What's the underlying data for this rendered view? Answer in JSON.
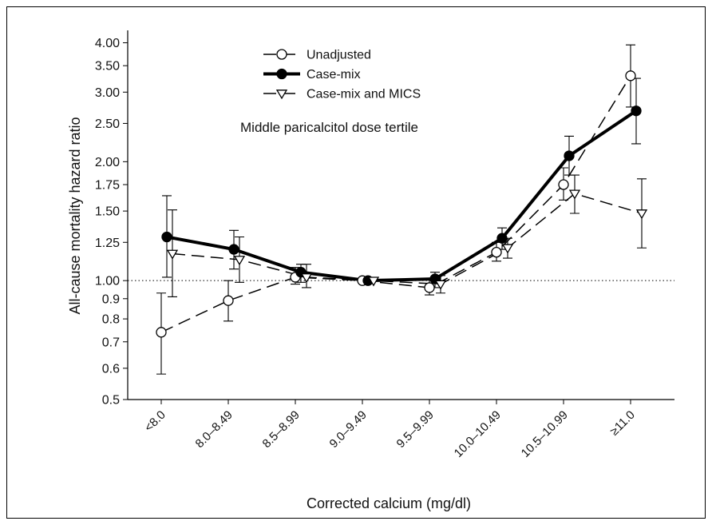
{
  "chart_data": {
    "type": "line",
    "annotation": "Middle paricalcitol dose tertile",
    "x_label": "Corrected calcium (mg/dl)",
    "y_label": "All-cause mortality hazard ratio",
    "log_scale": true,
    "reference_line": 1,
    "categories": [
      "<8.0",
      "8.0–8.49",
      "8.5–8.99",
      "9.0–9.49",
      "9.5–9.99",
      "10.0–10.49",
      "10.5–10.99",
      "≥11.0"
    ],
    "ylim": [
      0.5,
      4.3
    ],
    "yticks": [
      0.5,
      0.6,
      0.7,
      0.8,
      0.9,
      {
        "value": 1,
        "label": "1.00"
      },
      1.25,
      {
        "value": 1.5,
        "label": "1.50"
      },
      1.75,
      {
        "value": 2,
        "label": "2.00"
      },
      {
        "value": 2.5,
        "label": "2.50"
      },
      {
        "value": 3,
        "label": "3.00"
      },
      {
        "value": 3.5,
        "label": "3.50"
      },
      {
        "value": 4,
        "label": "4.00"
      }
    ],
    "series": [
      {
        "name": "Unadjusted",
        "color": "#000000",
        "marker": "circle-open",
        "dashed": true,
        "values": [
          0.74,
          0.89,
          1.02,
          1.0,
          0.96,
          1.18,
          1.75,
          3.3
        ],
        "ci_low": [
          0.58,
          0.79,
          0.98,
          1.0,
          0.92,
          1.12,
          1.6,
          2.75
        ],
        "ci_high": [
          0.93,
          1.0,
          1.08,
          1.0,
          1.01,
          1.25,
          1.93,
          3.95
        ]
      },
      {
        "name": "Case-mix",
        "color": "#000000",
        "marker": "circle-filled",
        "dashed": false,
        "values": [
          1.29,
          1.2,
          1.05,
          1.0,
          1.01,
          1.28,
          2.07,
          2.69
        ],
        "ci_low": [
          1.02,
          1.07,
          0.99,
          1.0,
          0.96,
          1.2,
          1.85,
          2.22
        ],
        "ci_high": [
          1.64,
          1.34,
          1.1,
          1.0,
          1.05,
          1.36,
          2.32,
          3.25
        ]
      },
      {
        "name": "Case-mix and MICS",
        "color": "#000000",
        "marker": "triangle-down-open",
        "dashed": true,
        "values": [
          1.17,
          1.13,
          1.02,
          1.0,
          0.98,
          1.21,
          1.66,
          1.48
        ],
        "ci_low": [
          0.91,
          0.99,
          0.96,
          1.0,
          0.93,
          1.14,
          1.48,
          1.21
        ],
        "ci_high": [
          1.51,
          1.29,
          1.1,
          1.0,
          1.03,
          1.28,
          1.85,
          1.81
        ]
      }
    ]
  }
}
